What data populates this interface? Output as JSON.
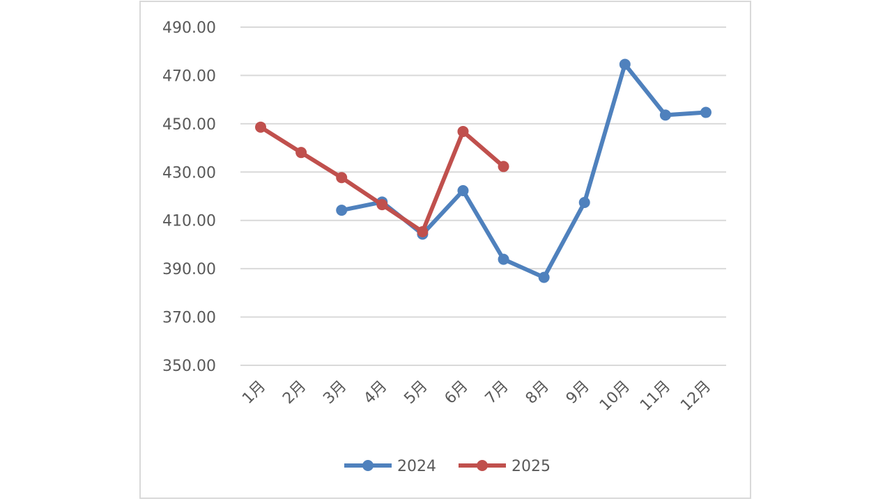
{
  "chart_data": {
    "type": "line",
    "title": "",
    "xlabel": "",
    "ylabel": "",
    "categories": [
      "1月",
      "2月",
      "3月",
      "4月",
      "5月",
      "6月",
      "7月",
      "8月",
      "9月",
      "10月",
      "11月",
      "12月"
    ],
    "y_ticks": [
      "350.00",
      "370.00",
      "390.00",
      "410.00",
      "430.00",
      "450.00",
      "470.00",
      "490.00"
    ],
    "ylim": [
      350,
      490
    ],
    "grid": true,
    "legend_position": "bottom",
    "series": [
      {
        "name": "2024",
        "color": "#4f81bd",
        "values": [
          null,
          null,
          414.2,
          417.6,
          404.3,
          422.3,
          393.9,
          386.4,
          417.4,
          474.6,
          453.6,
          454.7
        ]
      },
      {
        "name": "2025",
        "color": "#c0504d",
        "values": [
          448.6,
          438.1,
          427.7,
          416.5,
          405.3,
          446.8,
          432.3,
          null,
          null,
          null,
          null,
          null
        ]
      }
    ]
  }
}
